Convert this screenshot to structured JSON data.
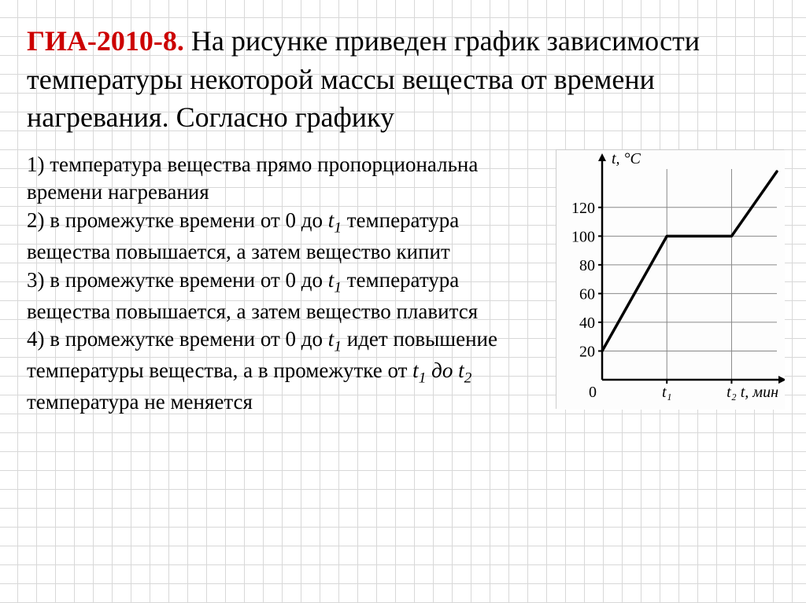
{
  "heading": {
    "exam_code": "ГИА-2010-8.",
    "text": " На рисунке приведен график зависимости температуры некоторой массы вещества от времени нагревания. Согласно графику"
  },
  "options": {
    "o1_pre": "1) температура вещества прямо пропорциональна времени нагревания",
    "o2_pre": "2) в промежутке времени от 0 до ",
    "o2_var": "t",
    "o2_sub": "1",
    "o2_post": " температура вещества повышается, а затем вещество кипит",
    "o3_pre": "3) в промежутке времени от 0 до ",
    "o3_var": "t",
    "o3_sub": "1",
    "o3_post": " температура вещества повышается, а затем вещество плавится",
    "o4_pre": "4) в промежутке времени от 0 до ",
    "o4_var": "t",
    "o4_sub": "1",
    "o4_post": " идет повышение температуры вещества, а в промежутке от ",
    "o4_var2": "t",
    "o4_sub2": "1",
    "o4_mid": " до ",
    "o4_var3": "t",
    "o4_sub3": "2",
    "o4_end": " температура не меняется"
  },
  "chart": {
    "type": "line",
    "y_axis_label": "t, °C",
    "x_axis_label": "t, мин",
    "y_ticks": [
      20,
      40,
      60,
      80,
      100,
      120
    ],
    "x_ticks": [
      "0",
      "t₁",
      "t₂"
    ],
    "x_tick_positions": [
      0,
      1,
      2
    ],
    "points": [
      {
        "x": 0,
        "y": 20
      },
      {
        "x": 1,
        "y": 100
      },
      {
        "x": 2,
        "y": 100
      },
      {
        "x": 2.7,
        "y": 145
      }
    ],
    "xlim": [
      0,
      2.7
    ],
    "ylim": [
      0,
      150
    ],
    "line_color": "#000000",
    "line_width": 3.5,
    "axis_color": "#000000",
    "grid_color": "#888888",
    "background_color": "#fdfdfd",
    "label_fontsize": 20,
    "tick_fontsize": 20
  }
}
